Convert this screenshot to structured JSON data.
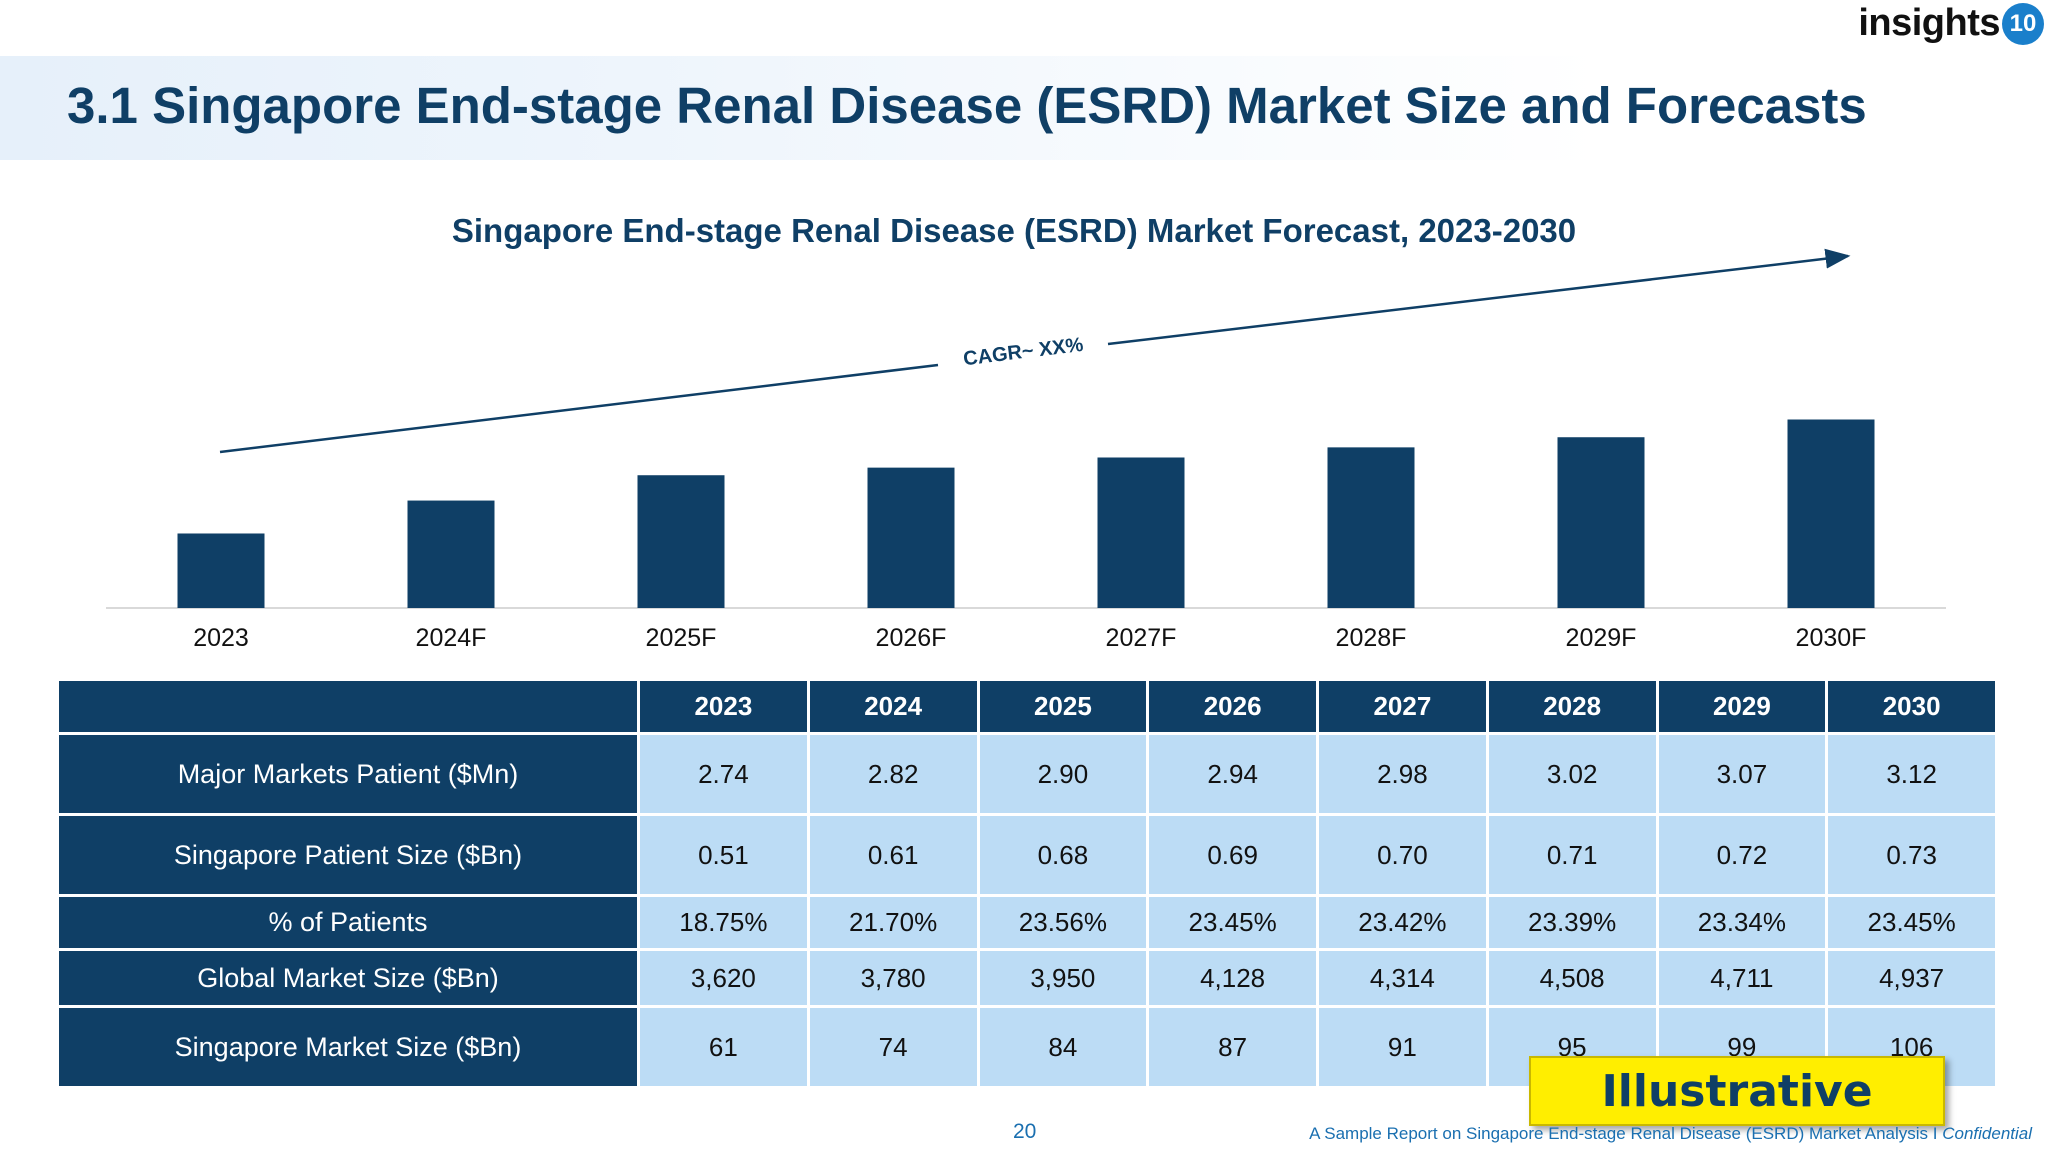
{
  "page": {
    "title": "3.1 Singapore End-stage Renal Disease (ESRD) Market Size and Forecasts",
    "page_number": "20",
    "footer_text": "A Sample Report on Singapore End-stage Renal Disease (ESRD) Market Analysis I ",
    "footer_italic": "Confidential"
  },
  "logo": {
    "text": "insights",
    "badge": "10"
  },
  "stamp": {
    "label": "Illustrative"
  },
  "colors": {
    "navy": "#0f3f66",
    "light_blue": "#bcdcf5",
    "stamp_yellow": "#ffee00"
  },
  "chart_data": {
    "type": "bar",
    "title": "Singapore End-stage Renal Disease (ESRD) Market Forecast, 2023-2030",
    "categories": [
      "2023",
      "2024F",
      "2025F",
      "2026F",
      "2027F",
      "2028F",
      "2029F",
      "2030F"
    ],
    "values": [
      61,
      74,
      84,
      87,
      91,
      95,
      99,
      106
    ],
    "xlabel": "",
    "ylabel": "",
    "ylim": [
      0,
      110
    ],
    "grid": false,
    "annotation": "CAGR~ XX%"
  },
  "table": {
    "columns": [
      "2023",
      "2024",
      "2025",
      "2026",
      "2027",
      "2028",
      "2029",
      "2030"
    ],
    "rows": [
      {
        "label": "Major Markets Patient ($Mn)",
        "values": [
          "2.74",
          "2.82",
          "2.90",
          "2.94",
          "2.98",
          "3.02",
          "3.07",
          "3.12"
        ]
      },
      {
        "label": "Singapore Patient Size ($Bn)",
        "values": [
          "0.51",
          "0.61",
          "0.68",
          "0.69",
          "0.70",
          "0.71",
          "0.72",
          "0.73"
        ]
      },
      {
        "label": "% of Patients",
        "values": [
          "18.75%",
          "21.70%",
          "23.56%",
          "23.45%",
          "23.42%",
          "23.39%",
          "23.34%",
          "23.45%"
        ]
      },
      {
        "label": "Global Market Size ($Bn)",
        "values": [
          "3,620",
          "3,780",
          "3,950",
          "4,128",
          "4,314",
          "4,508",
          "4,711",
          "4,937"
        ]
      },
      {
        "label": "Singapore Market Size ($Bn)",
        "values": [
          "61",
          "74",
          "84",
          "87",
          "91",
          "95",
          "99",
          "106"
        ]
      }
    ]
  }
}
